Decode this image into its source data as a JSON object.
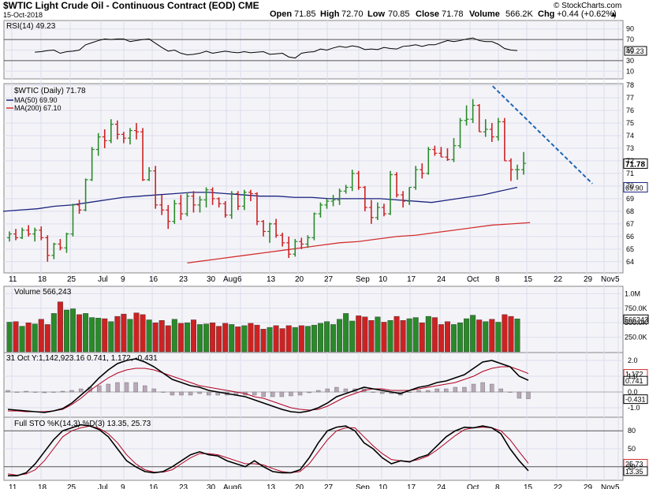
{
  "header": {
    "title": "$WTIC Light Crude Oil - Continuous Contract (EOD) CME",
    "date": "15-Oct-2018",
    "open_label": "Open",
    "open": "71.85",
    "high_label": "High",
    "high": "72.70",
    "low_label": "Low",
    "low": "70.85",
    "close_label": "Close",
    "close": "71.78",
    "volume_label": "Volume",
    "volume": "566.2K",
    "chg_label": "Chg",
    "chg": "+0.44 (+0.62%)",
    "arrow": "▲",
    "brand": "© StockCharts.com"
  },
  "colors": {
    "up": "#2a8a2a",
    "down": "#cc2222",
    "ma50": "#1a237e",
    "ma200": "#d32f2f",
    "trend": "#1e64b4",
    "panel_bg": "#f4f4f8"
  },
  "chart_data": [
    {
      "panel": "rsi",
      "type": "line",
      "legend": "RSI(14) 49.23",
      "yticks": [
        10,
        30,
        50,
        70,
        90
      ],
      "last_value": "49.23",
      "ylim": [
        0,
        100
      ],
      "reference_lines": [
        30,
        70
      ],
      "values": [
        46,
        47,
        49,
        50,
        44,
        47,
        48,
        50,
        60,
        64,
        68,
        71,
        70,
        71,
        71,
        66,
        68,
        70,
        71,
        63,
        55,
        48,
        50,
        44,
        41,
        42,
        44,
        48,
        44,
        46,
        48,
        46,
        45,
        47,
        45,
        46,
        47,
        42,
        43,
        44,
        37,
        35,
        44,
        46,
        47,
        52,
        50,
        54,
        57,
        55,
        58,
        56,
        51,
        52,
        51,
        55,
        53,
        52,
        57,
        58,
        60,
        57,
        60,
        60,
        64,
        68,
        66,
        68,
        71,
        73,
        68,
        66,
        66,
        61,
        53,
        50,
        49
      ]
    },
    {
      "panel": "price",
      "type": "ohlc",
      "legend": "$WTIC (Daily) 71.78",
      "ma_legend": [
        "MA(50) 69.90",
        "MA(200) 67.10"
      ],
      "yticks": [
        64,
        65,
        66,
        67,
        68,
        69,
        70,
        71,
        72,
        73,
        74,
        75,
        76,
        77,
        78
      ],
      "last_price_label": "71.78",
      "ma50_label": "69.90",
      "ma200_label": "67.10",
      "ylim": [
        63.3,
        78.0
      ],
      "ohlc": [
        [
          65.9,
          66.4,
          65.6,
          66.2
        ],
        [
          66.2,
          66.6,
          65.7,
          65.9
        ],
        [
          65.9,
          66.7,
          65.8,
          66.5
        ],
        [
          66.5,
          66.9,
          66.0,
          66.2
        ],
        [
          66.2,
          66.7,
          65.6,
          66.5
        ],
        [
          66.5,
          66.8,
          65.7,
          65.9
        ],
        [
          65.9,
          66.1,
          64.0,
          64.5
        ],
        [
          64.5,
          65.5,
          64.2,
          65.4
        ],
        [
          65.4,
          65.8,
          64.9,
          65.1
        ],
        [
          65.1,
          66.3,
          64.7,
          66.2
        ],
        [
          66.2,
          68.6,
          66.0,
          68.5
        ],
        [
          68.5,
          68.9,
          67.8,
          68.1
        ],
        [
          68.1,
          70.6,
          68.0,
          70.5
        ],
        [
          70.5,
          73.1,
          70.4,
          72.9
        ],
        [
          72.9,
          74.2,
          72.4,
          73.9
        ],
        [
          73.9,
          74.5,
          73.0,
          73.6
        ],
        [
          73.6,
          75.3,
          73.4,
          74.9
        ],
        [
          74.9,
          75.2,
          73.7,
          74.1
        ],
        [
          74.1,
          74.3,
          73.4,
          73.8
        ],
        [
          73.8,
          74.6,
          73.3,
          74.4
        ],
        [
          74.4,
          75.0,
          73.7,
          74.3
        ],
        [
          74.3,
          74.6,
          70.4,
          70.5
        ],
        [
          70.5,
          71.5,
          70.4,
          71.2
        ],
        [
          71.2,
          71.6,
          68.2,
          68.5
        ],
        [
          68.5,
          69.3,
          67.7,
          68.1
        ],
        [
          68.1,
          68.5,
          66.6,
          67.2
        ],
        [
          67.2,
          68.9,
          67.0,
          68.6
        ],
        [
          68.6,
          69.3,
          67.3,
          67.8
        ],
        [
          67.8,
          69.5,
          67.6,
          69.2
        ],
        [
          69.2,
          69.6,
          67.9,
          68.5
        ],
        [
          68.5,
          69.2,
          67.9,
          68.9
        ],
        [
          68.9,
          69.9,
          68.3,
          69.7
        ],
        [
          69.7,
          69.9,
          68.5,
          69.0
        ],
        [
          69.0,
          69.1,
          68.3,
          68.6
        ],
        [
          68.6,
          68.8,
          67.5,
          67.7
        ],
        [
          67.7,
          69.6,
          67.4,
          69.4
        ],
        [
          69.4,
          69.6,
          68.1,
          68.4
        ],
        [
          68.4,
          69.7,
          68.1,
          69.5
        ],
        [
          69.5,
          69.7,
          68.8,
          69.4
        ],
        [
          69.4,
          69.5,
          66.9,
          67.2
        ],
        [
          67.2,
          67.3,
          66.0,
          66.4
        ],
        [
          66.4,
          67.1,
          65.5,
          67.0
        ],
        [
          67.0,
          67.4,
          65.9,
          66.1
        ],
        [
          66.1,
          66.3,
          65.2,
          65.5
        ],
        [
          65.5,
          66.0,
          64.3,
          64.6
        ],
        [
          64.6,
          65.8,
          64.4,
          65.6
        ],
        [
          65.6,
          65.9,
          65.0,
          65.4
        ],
        [
          65.4,
          66.1,
          65.1,
          65.9
        ],
        [
          65.9,
          67.9,
          65.7,
          67.8
        ],
        [
          67.8,
          68.7,
          67.5,
          68.5
        ],
        [
          68.5,
          69.0,
          68.2,
          68.8
        ],
        [
          68.8,
          69.3,
          68.4,
          68.9
        ],
        [
          68.9,
          69.8,
          68.5,
          69.6
        ],
        [
          69.6,
          70.1,
          69.4,
          69.9
        ],
        [
          69.9,
          71.3,
          69.6,
          71.0
        ],
        [
          71.0,
          71.2,
          69.7,
          69.9
        ],
        [
          69.9,
          70.0,
          68.0,
          68.3
        ],
        [
          68.3,
          68.9,
          67.0,
          67.5
        ],
        [
          67.5,
          68.7,
          67.3,
          68.3
        ],
        [
          68.3,
          68.6,
          67.6,
          67.8
        ],
        [
          67.8,
          71.2,
          67.7,
          70.9
        ],
        [
          70.9,
          71.1,
          69.1,
          69.3
        ],
        [
          69.3,
          69.6,
          68.3,
          68.8
        ],
        [
          68.8,
          69.9,
          68.5,
          69.9
        ],
        [
          69.9,
          71.6,
          69.7,
          71.3
        ],
        [
          71.3,
          71.8,
          70.6,
          71.0
        ],
        [
          71.0,
          73.1,
          70.9,
          72.9
        ],
        [
          72.9,
          73.2,
          72.4,
          72.6
        ],
        [
          72.6,
          73.1,
          72.3,
          72.3
        ],
        [
          72.3,
          73.0,
          72.0,
          72.1
        ],
        [
          72.1,
          73.8,
          71.9,
          73.2
        ],
        [
          73.2,
          75.4,
          73.0,
          75.2
        ],
        [
          75.2,
          76.4,
          74.8,
          75.3
        ],
        [
          75.3,
          76.9,
          75.0,
          76.4
        ],
        [
          76.4,
          76.5,
          74.3,
          74.3
        ],
        [
          74.3,
          75.3,
          73.9,
          74.5
        ],
        [
          74.5,
          75.0,
          73.5,
          73.9
        ],
        [
          73.9,
          75.4,
          73.6,
          75.1
        ],
        [
          75.1,
          75.4,
          72.0,
          72.0
        ],
        [
          72.0,
          72.2,
          70.4,
          71.3
        ],
        [
          71.3,
          71.7,
          70.5,
          71.3
        ],
        [
          71.3,
          72.7,
          70.9,
          71.8
        ]
      ],
      "ma50": [
        68.0,
        68.1,
        68.2,
        68.4,
        68.5,
        68.7,
        68.9,
        69.1,
        69.2,
        69.3,
        69.4,
        69.5,
        69.5,
        69.4,
        69.3,
        69.2,
        69.2,
        69.1,
        69.1,
        69.0,
        69.0,
        69.0,
        69.0,
        68.9,
        68.8,
        68.7,
        68.9,
        69.1,
        69.3,
        69.6,
        69.9
      ],
      "ma200": [
        63.9,
        64.1,
        64.3,
        64.5,
        64.7,
        64.9,
        65.1,
        65.3,
        65.5,
        65.6,
        65.8,
        66.0,
        66.1,
        66.3,
        66.5,
        66.7,
        66.9,
        67.0,
        67.1
      ],
      "trendline": [
        [
          75.0,
          77.8
        ],
        [
          85.0,
          70.5
        ]
      ],
      "x_labels": [
        "11",
        "18",
        "25",
        "Jul",
        "9",
        "16",
        "23",
        "30",
        "Aug",
        "6",
        "13",
        "20",
        "27",
        "Sep",
        "10",
        "17",
        "24",
        "Oct",
        "8",
        "15",
        "22",
        "29",
        "Nov",
        "5"
      ]
    },
    {
      "panel": "volume",
      "type": "bar",
      "legend": "Volume 566,243",
      "yticks": [
        "1.0M",
        "750.0K",
        "500.0K",
        "250.0K"
      ],
      "last_label": "566243",
      "ylim": [
        0,
        1100000
      ],
      "values": [
        510000,
        520000,
        440000,
        500000,
        480000,
        560000,
        470000,
        660000,
        860000,
        720000,
        740000,
        640000,
        660000,
        590000,
        580000,
        570000,
        520000,
        610000,
        650000,
        560000,
        670000,
        640000,
        550000,
        500000,
        540000,
        450000,
        560000,
        490000,
        500000,
        550000,
        470000,
        480000,
        500000,
        440000,
        490000,
        470000,
        430000,
        450000,
        490000,
        460000,
        390000,
        420000,
        450000,
        400000,
        450000,
        420000,
        450000,
        440000,
        460000,
        490000,
        520000,
        470000,
        560000,
        660000,
        530000,
        620000,
        600000,
        540000,
        600000,
        510000,
        540000,
        610000,
        540000,
        570000,
        590000,
        500000,
        610000,
        590000,
        470000,
        520000,
        470000,
        500000,
        570000,
        630000,
        550000,
        520000,
        560000,
        510000,
        640000,
        610000,
        566243
      ]
    },
    {
      "panel": "macd",
      "type": "line",
      "legend": "31 Oct Y:1,142,923.16 0.741, 1.172, -0.431",
      "yticks": [
        "2.0",
        "1.0",
        "0.0",
        "-1.0"
      ],
      "labels": [
        "1.172",
        "0.741",
        "-0.431"
      ],
      "ylim": [
        -1.5,
        2.4
      ],
      "macd": [
        -1.1,
        -1.15,
        -1.2,
        -1.25,
        -1.3,
        -1.2,
        -1.05,
        -0.7,
        -0.2,
        0.3,
        0.9,
        1.4,
        1.8,
        2.0,
        2.1,
        1.9,
        1.6,
        1.2,
        0.8,
        0.6,
        0.4,
        0.3,
        0.1,
        0.0,
        -0.1,
        -0.2,
        -0.3,
        -0.5,
        -0.7,
        -0.9,
        -1.1,
        -1.25,
        -1.3,
        -1.2,
        -1.0,
        -0.7,
        -0.3,
        -0.1,
        0.1,
        0.3,
        0.2,
        0.1,
        0.0,
        -0.1,
        0.1,
        0.3,
        0.4,
        0.6,
        0.7,
        0.9,
        1.1,
        1.5,
        1.9,
        2.0,
        1.8,
        1.6,
        1.0,
        0.741
      ],
      "signal": [
        -1.2,
        -1.2,
        -1.25,
        -1.25,
        -1.25,
        -1.2,
        -1.1,
        -0.8,
        -0.4,
        0.1,
        0.5,
        0.9,
        1.2,
        1.4,
        1.5,
        1.5,
        1.4,
        1.2,
        1.0,
        0.8,
        0.6,
        0.4,
        0.3,
        0.2,
        0.1,
        0.0,
        -0.1,
        -0.3,
        -0.4,
        -0.6,
        -0.8,
        -1.0,
        -1.1,
        -1.15,
        -1.1,
        -0.9,
        -0.6,
        -0.3,
        -0.1,
        0.1,
        0.2,
        0.2,
        0.1,
        0.1,
        0.1,
        0.2,
        0.3,
        0.4,
        0.5,
        0.6,
        0.8,
        1.0,
        1.3,
        1.5,
        1.6,
        1.6,
        1.4,
        1.172
      ],
      "hist": [
        0.1,
        0.0,
        0.05,
        0.0,
        -0.05,
        0.0,
        0.05,
        0.1,
        0.2,
        0.3,
        0.4,
        0.5,
        0.6,
        0.6,
        0.6,
        0.4,
        0.2,
        0.0,
        -0.2,
        -0.2,
        -0.2,
        -0.1,
        -0.2,
        -0.2,
        -0.2,
        -0.2,
        -0.2,
        -0.2,
        -0.3,
        -0.3,
        -0.3,
        -0.25,
        -0.2,
        -0.05,
        0.1,
        0.2,
        0.3,
        0.2,
        0.2,
        0.2,
        0.0,
        -0.1,
        -0.1,
        -0.2,
        0.0,
        0.1,
        0.1,
        0.2,
        0.2,
        0.3,
        0.3,
        0.5,
        0.6,
        0.5,
        0.2,
        0.0,
        -0.4,
        -0.431
      ]
    },
    {
      "panel": "stoch",
      "type": "line",
      "legend": "Full STO %K(14,3) %D(3) 13.35, 25.73",
      "yticks": [
        "80",
        "50",
        "20"
      ],
      "labels": [
        "25.73",
        "13.35"
      ],
      "ylim": [
        0,
        100
      ],
      "k": [
        5,
        5,
        10,
        25,
        45,
        65,
        80,
        85,
        90,
        88,
        82,
        70,
        50,
        30,
        20,
        12,
        10,
        12,
        20,
        30,
        40,
        45,
        40,
        38,
        30,
        25,
        20,
        30,
        20,
        12,
        10,
        10,
        15,
        35,
        60,
        80,
        86,
        88,
        80,
        60,
        50,
        35,
        25,
        30,
        28,
        35,
        40,
        55,
        70,
        80,
        86,
        85,
        88,
        85,
        75,
        50,
        30,
        13.35
      ],
      "d": [
        8,
        6,
        8,
        15,
        30,
        50,
        70,
        80,
        85,
        88,
        84,
        75,
        60,
        40,
        25,
        15,
        11,
        11,
        15,
        25,
        35,
        42,
        42,
        40,
        35,
        30,
        25,
        25,
        23,
        17,
        12,
        10,
        12,
        25,
        45,
        65,
        80,
        85,
        85,
        70,
        55,
        42,
        32,
        30,
        29,
        32,
        38,
        48,
        60,
        72,
        82,
        85,
        86,
        85,
        80,
        65,
        45,
        25.73
      ]
    }
  ]
}
